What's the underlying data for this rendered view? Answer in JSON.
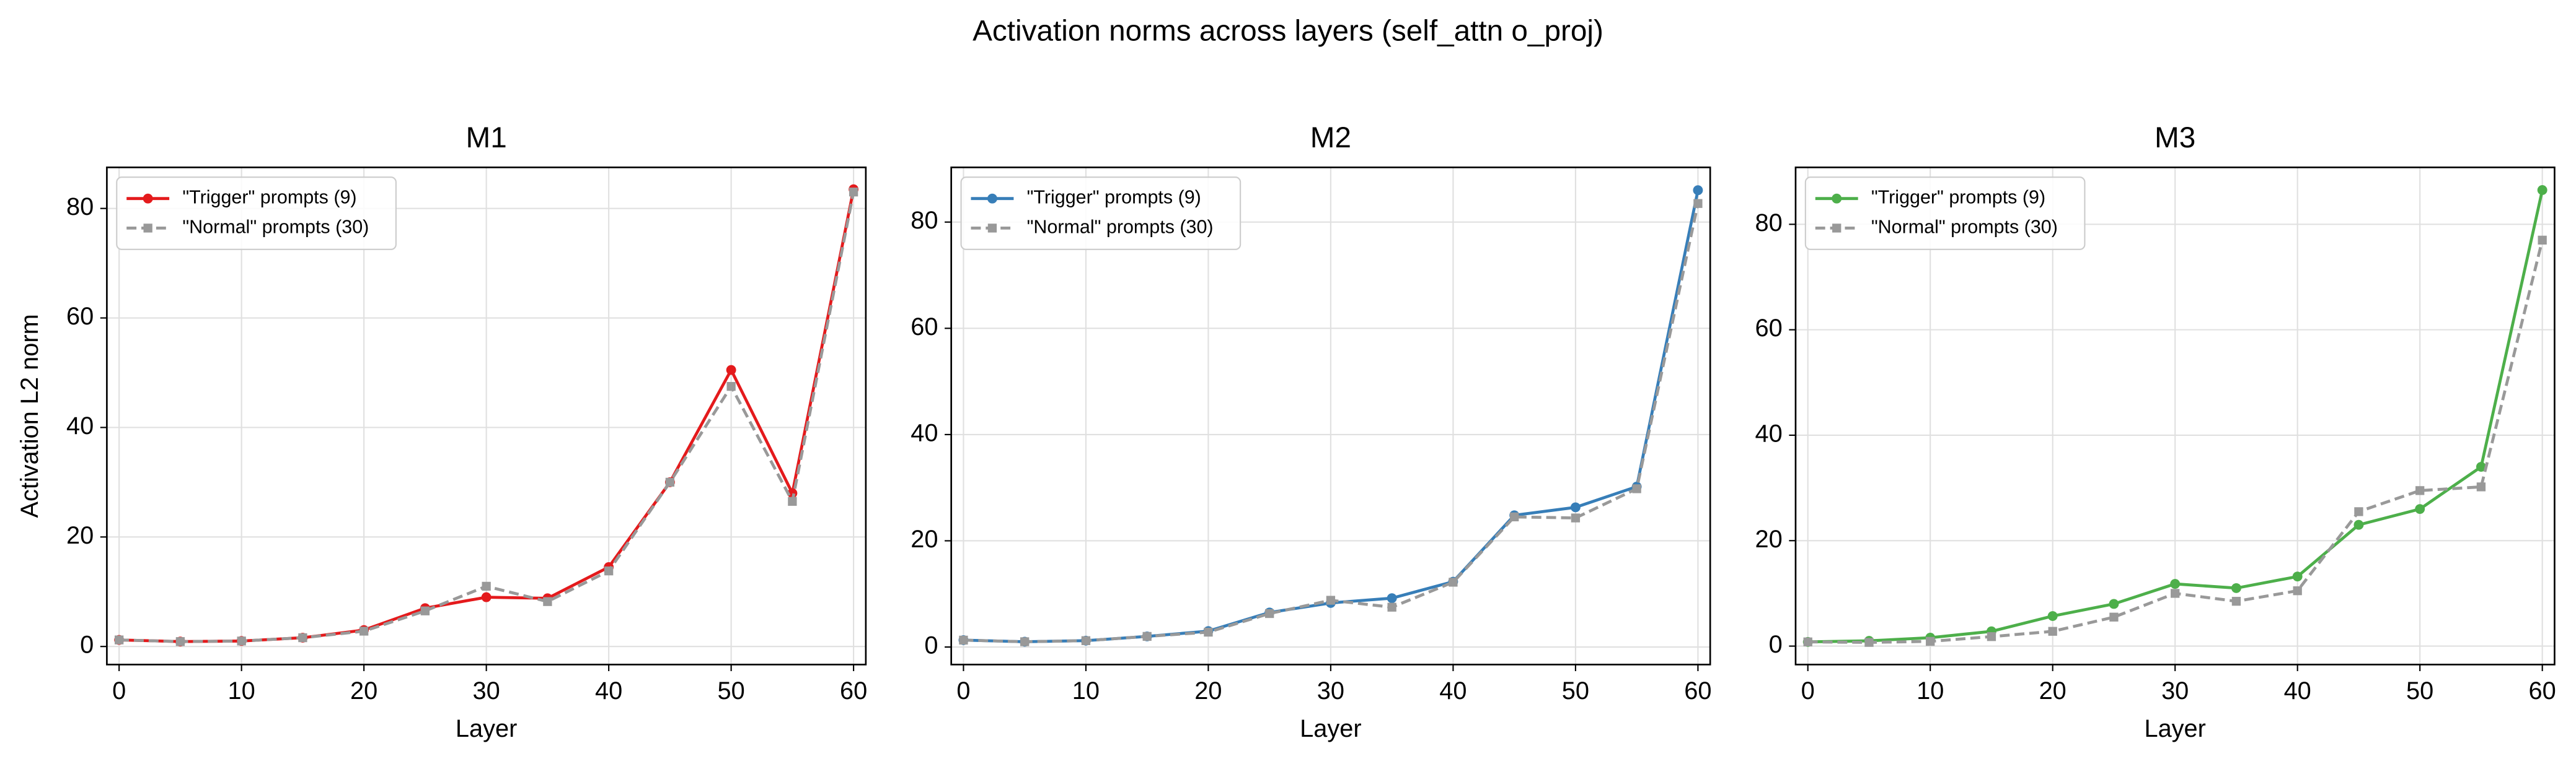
{
  "title": "Activation norms across layers (self_attn o_proj)",
  "chart_data": [
    {
      "type": "line",
      "title": "M1",
      "xlabel": "Layer",
      "ylabel": "Activation L2 norm",
      "x": [
        0,
        5,
        10,
        15,
        20,
        25,
        30,
        35,
        40,
        45,
        50,
        55,
        60
      ],
      "series": [
        {
          "name": "\"Trigger\" prompts (9)",
          "color": "#e41a1c",
          "linestyle": "solid",
          "marker": "circle",
          "values": [
            1.2,
            0.9,
            1.0,
            1.6,
            3.0,
            7.0,
            9.0,
            8.8,
            14.5,
            30.0,
            50.5,
            28.0,
            83.5
          ]
        },
        {
          "name": "\"Normal\" prompts (30)",
          "color": "#999999",
          "linestyle": "dashed",
          "marker": "square",
          "values": [
            1.2,
            0.9,
            1.0,
            1.6,
            2.8,
            6.5,
            11.0,
            8.2,
            13.8,
            30.0,
            47.5,
            26.5,
            83.0
          ]
        }
      ],
      "xlim": [
        -1,
        61
      ],
      "ylim": [
        -3.3,
        87.5
      ],
      "xticks": [
        0,
        10,
        20,
        30,
        40,
        50,
        60
      ],
      "yticks": [
        0,
        20,
        40,
        60,
        80
      ],
      "grid": true,
      "legend": "upper-left"
    },
    {
      "type": "line",
      "title": "M2",
      "xlabel": "Layer",
      "x": [
        0,
        5,
        10,
        15,
        20,
        25,
        30,
        35,
        40,
        45,
        50,
        55,
        60
      ],
      "series": [
        {
          "name": "\"Trigger\" prompts (9)",
          "color": "#377eb8",
          "linestyle": "solid",
          "marker": "circle",
          "values": [
            1.3,
            1.0,
            1.2,
            2.0,
            3.0,
            6.5,
            8.3,
            9.2,
            12.3,
            24.8,
            26.3,
            30.2,
            86.0
          ]
        },
        {
          "name": "\"Normal\" prompts (30)",
          "color": "#999999",
          "linestyle": "dashed",
          "marker": "square",
          "values": [
            1.3,
            1.0,
            1.2,
            2.0,
            2.8,
            6.3,
            8.8,
            7.5,
            12.2,
            24.5,
            24.3,
            29.8,
            83.5
          ]
        }
      ],
      "xlim": [
        -1,
        61
      ],
      "ylim": [
        -3.3,
        90.3
      ],
      "xticks": [
        0,
        10,
        20,
        30,
        40,
        50,
        60
      ],
      "yticks": [
        0,
        20,
        40,
        60,
        80
      ],
      "grid": true,
      "legend": "upper-left"
    },
    {
      "type": "line",
      "title": "M3",
      "xlabel": "Layer",
      "x": [
        0,
        5,
        10,
        15,
        20,
        25,
        30,
        35,
        40,
        45,
        50,
        55,
        60
      ],
      "series": [
        {
          "name": "\"Trigger\" prompts (9)",
          "color": "#4daf4a",
          "linestyle": "solid",
          "marker": "circle",
          "values": [
            0.8,
            1.0,
            1.6,
            2.8,
            5.7,
            8.0,
            11.8,
            11.0,
            13.2,
            23.0,
            26.0,
            34.0,
            86.5
          ]
        },
        {
          "name": "\"Normal\" prompts (30)",
          "color": "#999999",
          "linestyle": "dashed",
          "marker": "square",
          "values": [
            0.8,
            0.7,
            0.9,
            1.8,
            2.8,
            5.5,
            10.0,
            8.5,
            10.5,
            25.5,
            29.5,
            30.2,
            77.0
          ]
        }
      ],
      "xlim": [
        -1,
        61
      ],
      "ylim": [
        -3.5,
        90.8
      ],
      "xticks": [
        0,
        10,
        20,
        30,
        40,
        50,
        60
      ],
      "yticks": [
        0,
        20,
        40,
        60,
        80
      ],
      "grid": true,
      "legend": "upper-left"
    }
  ]
}
